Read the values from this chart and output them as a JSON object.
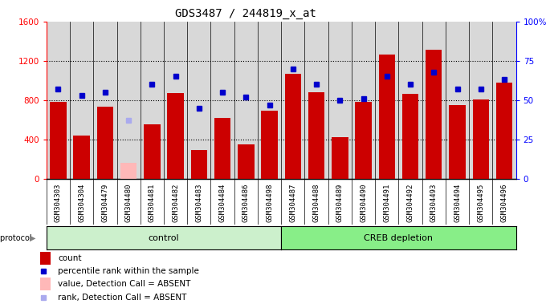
{
  "title": "GDS3487 / 244819_x_at",
  "samples": [
    "GSM304303",
    "GSM304304",
    "GSM304479",
    "GSM304480",
    "GSM304481",
    "GSM304482",
    "GSM304483",
    "GSM304484",
    "GSM304486",
    "GSM304498",
    "GSM304487",
    "GSM304488",
    "GSM304489",
    "GSM304490",
    "GSM304491",
    "GSM304492",
    "GSM304493",
    "GSM304494",
    "GSM304495",
    "GSM304496"
  ],
  "counts": [
    780,
    440,
    730,
    0,
    550,
    870,
    290,
    620,
    350,
    690,
    1070,
    880,
    420,
    780,
    1260,
    860,
    1310,
    750,
    810,
    980
  ],
  "absent_counts": [
    0,
    0,
    0,
    160,
    0,
    0,
    0,
    0,
    0,
    0,
    0,
    0,
    0,
    0,
    0,
    0,
    0,
    0,
    0,
    0
  ],
  "percentile_ranks": [
    57,
    53,
    55,
    0,
    60,
    65,
    45,
    55,
    52,
    47,
    70,
    60,
    50,
    51,
    65,
    60,
    68,
    57,
    57,
    63
  ],
  "absent_ranks": [
    0,
    0,
    0,
    37,
    0,
    0,
    0,
    0,
    0,
    0,
    0,
    0,
    0,
    0,
    0,
    0,
    0,
    0,
    0,
    0
  ],
  "is_absent": [
    false,
    false,
    false,
    true,
    false,
    false,
    false,
    false,
    false,
    false,
    false,
    false,
    false,
    false,
    false,
    false,
    false,
    false,
    false,
    false
  ],
  "group_labels": [
    "control",
    "CREB depletion"
  ],
  "control_count": 10,
  "creb_count": 10,
  "ylim_left": [
    0,
    1600
  ],
  "ylim_right": [
    0,
    100
  ],
  "yticks_left": [
    0,
    400,
    800,
    1200,
    1600
  ],
  "yticks_right": [
    0,
    25,
    50,
    75,
    100
  ],
  "ytick_labels_right": [
    "0",
    "25",
    "50",
    "75",
    "100%"
  ],
  "bar_color": "#cc0000",
  "bar_absent_color": "#ffb8b8",
  "dot_color": "#0000cc",
  "dot_absent_color": "#aaaaee",
  "bg_color": "#d8d8d8",
  "ctrl_bg": "#ccf0cc",
  "creb_bg": "#88ee88",
  "title_fontsize": 10,
  "tick_fontsize": 6.5,
  "legend_fontsize": 7.5
}
